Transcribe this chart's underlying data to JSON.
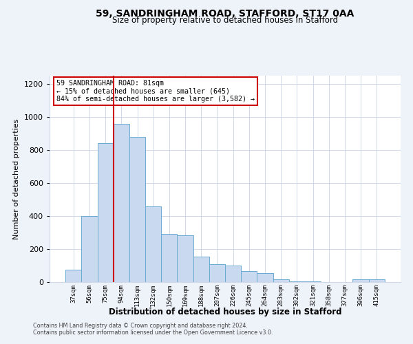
{
  "title1": "59, SANDRINGHAM ROAD, STAFFORD, ST17 0AA",
  "title2": "Size of property relative to detached houses in Stafford",
  "xlabel": "Distribution of detached houses by size in Stafford",
  "ylabel": "Number of detached properties",
  "categories": [
    "37sqm",
    "56sqm",
    "75sqm",
    "94sqm",
    "113sqm",
    "132sqm",
    "150sqm",
    "169sqm",
    "188sqm",
    "207sqm",
    "226sqm",
    "245sqm",
    "264sqm",
    "283sqm",
    "302sqm",
    "321sqm",
    "358sqm",
    "377sqm",
    "396sqm",
    "415sqm"
  ],
  "values": [
    75,
    400,
    840,
    960,
    880,
    460,
    290,
    285,
    155,
    110,
    100,
    65,
    55,
    15,
    5,
    5,
    0,
    0,
    15,
    15
  ],
  "bar_color": "#c9d9ef",
  "bar_edge_color": "#6aabd2",
  "vline_color": "#cc0000",
  "annotation_text": "59 SANDRINGHAM ROAD: 81sqm\n← 15% of detached houses are smaller (645)\n84% of semi-detached houses are larger (3,582) →",
  "annotation_box_color": "#ffffff",
  "annotation_box_edge": "#cc0000",
  "ylim": [
    0,
    1250
  ],
  "yticks": [
    0,
    200,
    400,
    600,
    800,
    1000,
    1200
  ],
  "footer1": "Contains HM Land Registry data © Crown copyright and database right 2024.",
  "footer2": "Contains public sector information licensed under the Open Government Licence v3.0.",
  "bg_color": "#eef2f9",
  "plot_bg_color": "#ffffff",
  "grid_color": "#d0d8e8"
}
